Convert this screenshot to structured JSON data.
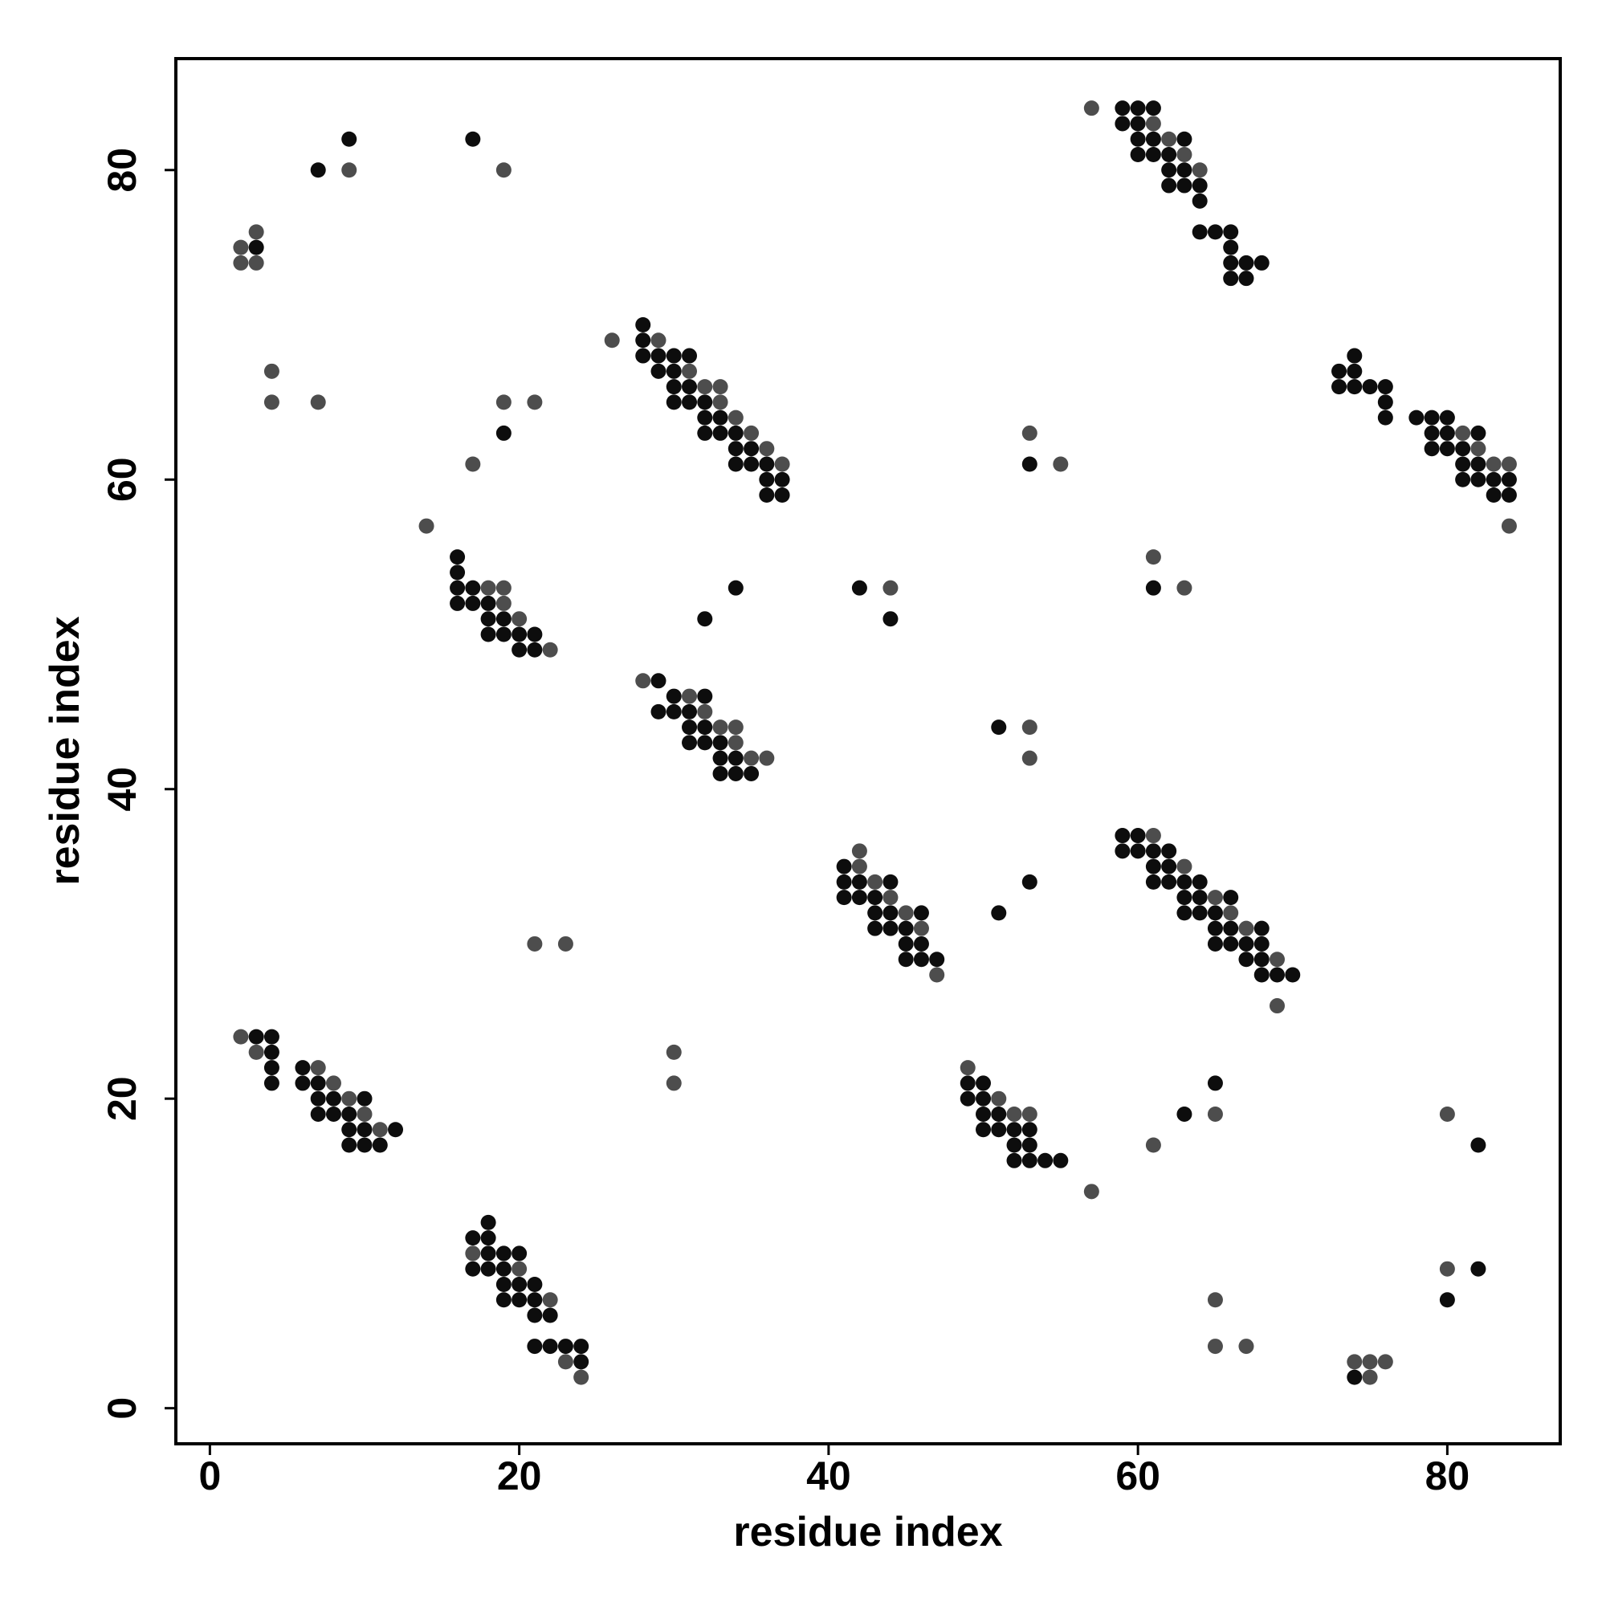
{
  "chart_data": {
    "type": "scatter",
    "x_label": "residue index",
    "y_label": "residue index",
    "xlim": [
      -2.2,
      87.3
    ],
    "ylim": [
      -2.3,
      87.2
    ],
    "xticks": [
      0,
      20,
      40,
      60,
      80
    ],
    "yticks": [
      0,
      20,
      40,
      60,
      80
    ],
    "series": [
      {
        "color": "#0d0d0d",
        "x": [
          3,
          7,
          9,
          17,
          19,
          16,
          16,
          16,
          17,
          16,
          17,
          18,
          18,
          19,
          18,
          19,
          20,
          21,
          20,
          21,
          28,
          28,
          28,
          29,
          30,
          31,
          29,
          30,
          30,
          31,
          30,
          31,
          32,
          32,
          33,
          32,
          33,
          34,
          34,
          35,
          34,
          35,
          36,
          36,
          37,
          36,
          37,
          32,
          34,
          29,
          30,
          32,
          29,
          30,
          31,
          31,
          32,
          31,
          32,
          33,
          33,
          34,
          33,
          34,
          35,
          3,
          4,
          4,
          4,
          6,
          4,
          6,
          7,
          7,
          8,
          10,
          7,
          8,
          9,
          9,
          10,
          12,
          9,
          10,
          11,
          18,
          17,
          18,
          18,
          19,
          20,
          17,
          18,
          19,
          19,
          20,
          21,
          19,
          20,
          21,
          21,
          22,
          21,
          22,
          23,
          24,
          24,
          41,
          41,
          42,
          44,
          41,
          42,
          43,
          43,
          44,
          46,
          43,
          44,
          45,
          45,
          46,
          45,
          46,
          47,
          42,
          44,
          51,
          51,
          53,
          53,
          61,
          49,
          50,
          49,
          50,
          50,
          51,
          50,
          51,
          52,
          53,
          52,
          53,
          52,
          53,
          54,
          55,
          59,
          60,
          59,
          60,
          61,
          62,
          61,
          62,
          61,
          62,
          63,
          64,
          63,
          64,
          66,
          63,
          64,
          65,
          65,
          66,
          68,
          65,
          66,
          67,
          68,
          67,
          68,
          68,
          69,
          70,
          63,
          65,
          74,
          82,
          82,
          80,
          59,
          60,
          61,
          59,
          60,
          60,
          61,
          63,
          60,
          61,
          62,
          62,
          63,
          62,
          63,
          64,
          64,
          64,
          65,
          66,
          66,
          66,
          67,
          68,
          66,
          67,
          74,
          73,
          74,
          73,
          74,
          75,
          76,
          76,
          76,
          78,
          79,
          80,
          79,
          80,
          82,
          79,
          80,
          81,
          81,
          82,
          81,
          82,
          83,
          84,
          83,
          84
        ],
        "y": [
          75,
          80,
          82,
          82,
          63,
          55,
          54,
          53,
          53,
          52,
          52,
          52,
          51,
          51,
          50,
          50,
          50,
          50,
          49,
          49,
          70,
          69,
          68,
          68,
          68,
          68,
          67,
          67,
          66,
          66,
          65,
          65,
          65,
          64,
          64,
          63,
          63,
          63,
          62,
          62,
          61,
          61,
          61,
          60,
          60,
          59,
          59,
          51,
          53,
          47,
          46,
          46,
          45,
          45,
          45,
          44,
          44,
          43,
          43,
          43,
          42,
          42,
          41,
          41,
          41,
          24,
          24,
          23,
          22,
          22,
          21,
          21,
          21,
          20,
          20,
          20,
          19,
          19,
          19,
          18,
          18,
          18,
          17,
          17,
          17,
          12,
          11,
          11,
          10,
          10,
          10,
          9,
          9,
          9,
          8,
          8,
          8,
          7,
          7,
          7,
          6,
          6,
          4,
          4,
          4,
          4,
          3,
          35,
          34,
          34,
          34,
          33,
          33,
          33,
          32,
          32,
          32,
          31,
          31,
          31,
          30,
          30,
          29,
          29,
          29,
          53,
          51,
          44,
          32,
          34,
          61,
          53,
          21,
          21,
          20,
          20,
          19,
          19,
          18,
          18,
          18,
          18,
          17,
          17,
          16,
          16,
          16,
          16,
          37,
          37,
          36,
          36,
          36,
          36,
          35,
          35,
          34,
          34,
          34,
          34,
          33,
          33,
          33,
          32,
          32,
          32,
          31,
          31,
          31,
          30,
          30,
          30,
          30,
          29,
          29,
          28,
          28,
          28,
          19,
          21,
          2,
          17,
          9,
          7,
          84,
          84,
          84,
          83,
          83,
          82,
          82,
          82,
          81,
          81,
          81,
          80,
          80,
          79,
          79,
          79,
          78,
          76,
          76,
          76,
          75,
          74,
          74,
          74,
          73,
          73,
          68,
          67,
          67,
          66,
          66,
          66,
          66,
          65,
          64,
          64,
          64,
          64,
          63,
          63,
          63,
          62,
          62,
          62,
          61,
          61,
          60,
          60,
          60,
          60,
          59,
          59
        ]
      },
      {
        "color": "#4d4d4d",
        "x": [
          2,
          3,
          2,
          3,
          4,
          4,
          7,
          9,
          19,
          17,
          19,
          21,
          14,
          18,
          19,
          19,
          20,
          22,
          26,
          29,
          31,
          32,
          33,
          33,
          34,
          35,
          36,
          37,
          28,
          31,
          32,
          33,
          34,
          34,
          35,
          36,
          21,
          23,
          30,
          30,
          2,
          3,
          7,
          8,
          9,
          10,
          11,
          17,
          20,
          22,
          23,
          24,
          42,
          42,
          43,
          44,
          45,
          46,
          47,
          44,
          53,
          53,
          53,
          55,
          61,
          63,
          49,
          51,
          52,
          53,
          57,
          61,
          63,
          65,
          66,
          67,
          69,
          69,
          61,
          65,
          65,
          65,
          67,
          74,
          75,
          76,
          75,
          80,
          80,
          57,
          61,
          62,
          63,
          64,
          81,
          82,
          83,
          84,
          84
        ],
        "y": [
          75,
          76,
          74,
          74,
          67,
          65,
          65,
          80,
          80,
          61,
          65,
          65,
          57,
          53,
          53,
          52,
          51,
          49,
          69,
          69,
          67,
          66,
          66,
          65,
          64,
          63,
          62,
          61,
          47,
          46,
          45,
          44,
          44,
          43,
          42,
          42,
          30,
          30,
          23,
          21,
          24,
          23,
          22,
          21,
          20,
          19,
          18,
          10,
          9,
          7,
          3,
          2,
          36,
          35,
          34,
          33,
          32,
          31,
          28,
          53,
          44,
          42,
          63,
          61,
          55,
          53,
          22,
          20,
          19,
          19,
          14,
          37,
          35,
          33,
          32,
          31,
          29,
          26,
          17,
          19,
          7,
          4,
          4,
          3,
          3,
          3,
          2,
          19,
          9,
          84,
          83,
          82,
          81,
          80,
          63,
          62,
          61,
          61,
          57
        ]
      }
    ]
  }
}
